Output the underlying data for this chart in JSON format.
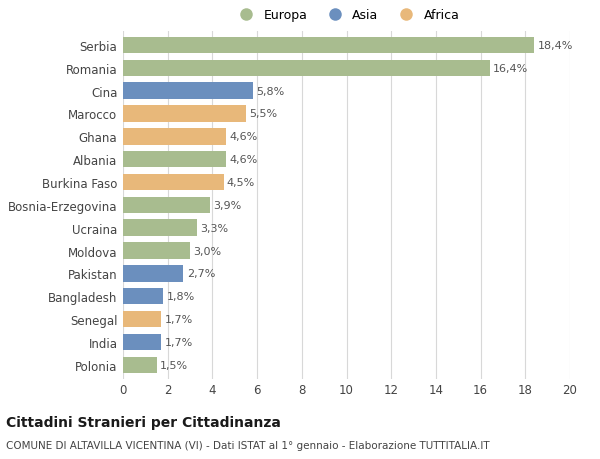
{
  "countries": [
    "Serbia",
    "Romania",
    "Cina",
    "Marocco",
    "Ghana",
    "Albania",
    "Burkina Faso",
    "Bosnia-Erzegovina",
    "Ucraina",
    "Moldova",
    "Pakistan",
    "Bangladesh",
    "Senegal",
    "India",
    "Polonia"
  ],
  "values": [
    18.4,
    16.4,
    5.8,
    5.5,
    4.6,
    4.6,
    4.5,
    3.9,
    3.3,
    3.0,
    2.7,
    1.8,
    1.7,
    1.7,
    1.5
  ],
  "continents": [
    "Europa",
    "Europa",
    "Asia",
    "Africa",
    "Africa",
    "Europa",
    "Africa",
    "Europa",
    "Europa",
    "Europa",
    "Asia",
    "Asia",
    "Africa",
    "Asia",
    "Europa"
  ],
  "labels": [
    "18,4%",
    "16,4%",
    "5,8%",
    "5,5%",
    "4,6%",
    "4,6%",
    "4,5%",
    "3,9%",
    "3,3%",
    "3,0%",
    "2,7%",
    "1,8%",
    "1,7%",
    "1,7%",
    "1,5%"
  ],
  "colors": {
    "Europa": "#a8bc8f",
    "Asia": "#6b8fbe",
    "Africa": "#e8b87a"
  },
  "title": "Cittadini Stranieri per Cittadinanza",
  "subtitle": "COMUNE DI ALTAVILLA VICENTINA (VI) - Dati ISTAT al 1° gennaio - Elaborazione TUTTITALIA.IT",
  "xlim": [
    0,
    20
  ],
  "xticks": [
    0,
    2,
    4,
    6,
    8,
    10,
    12,
    14,
    16,
    18,
    20
  ],
  "background_color": "#ffffff",
  "grid_color": "#d8d8d8",
  "bar_height": 0.72,
  "label_fontsize": 8,
  "tick_fontsize": 8.5,
  "title_fontsize": 10,
  "subtitle_fontsize": 7.5,
  "legend_fontsize": 9
}
